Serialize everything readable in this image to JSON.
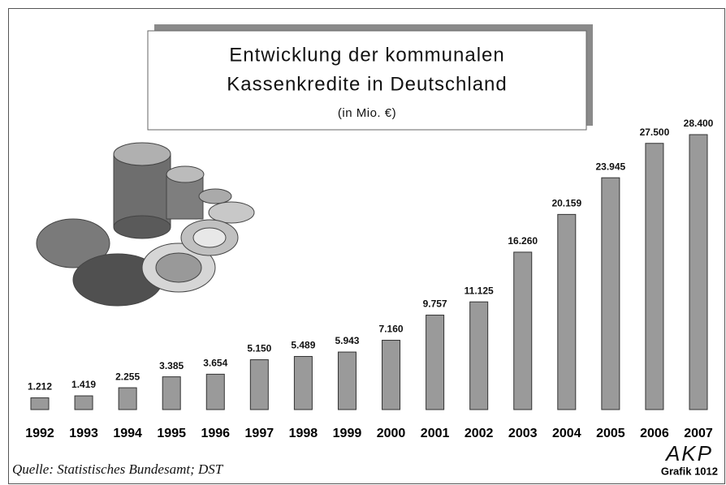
{
  "chart_data": {
    "type": "bar",
    "title": [
      "Entwicklung der kommunalen",
      "Kassenkredite in Deutschland"
    ],
    "subtitle": "(in Mio. €)",
    "categories": [
      "1992",
      "1993",
      "1994",
      "1995",
      "1996",
      "1997",
      "1998",
      "1999",
      "2000",
      "2001",
      "2002",
      "2003",
      "2004",
      "2005",
      "2006",
      "2007"
    ],
    "values": [
      1212,
      1419,
      2255,
      3385,
      3654,
      5150,
      5489,
      5943,
      7160,
      9757,
      11125,
      16260,
      20159,
      23945,
      27500,
      28400
    ],
    "value_labels": [
      "1.212",
      "1.419",
      "2.255",
      "3.385",
      "3.654",
      "5.150",
      "5.489",
      "5.943",
      "7.160",
      "9.757",
      "11.125",
      "16.260",
      "20.159",
      "23.945",
      "27.500",
      "28.400"
    ],
    "color": "#9a9a9a",
    "source": "Quelle: Statistisches Bundesamt; DST",
    "brand": "AKP",
    "graphic_id": "Grafik 1012"
  }
}
